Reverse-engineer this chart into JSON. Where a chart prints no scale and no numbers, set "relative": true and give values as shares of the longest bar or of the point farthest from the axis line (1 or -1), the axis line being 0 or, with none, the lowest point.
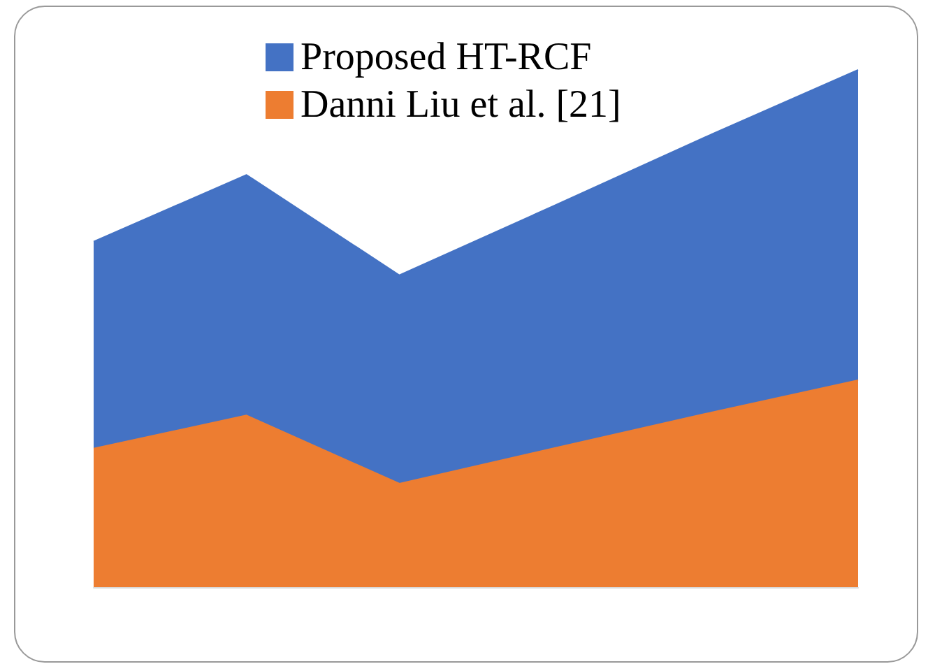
{
  "chart_data": {
    "type": "area",
    "relative": true,
    "categories": [
      null,
      null,
      null,
      null,
      null,
      null
    ],
    "legend": "top",
    "grid": false,
    "marker": "none",
    "series": [
      {
        "name": "Proposed HT-RCF",
        "color": "#4472c4",
        "values": [
          0.668,
          0.797,
          0.603,
          0.736,
          0.87,
          1
        ]
      },
      {
        "name": "Danni Liu et al. [21]",
        "color": "#ed7d31",
        "values": [
          0.268,
          0.332,
          0.2,
          0.268,
          0.335,
          0.4
        ]
      }
    ]
  }
}
